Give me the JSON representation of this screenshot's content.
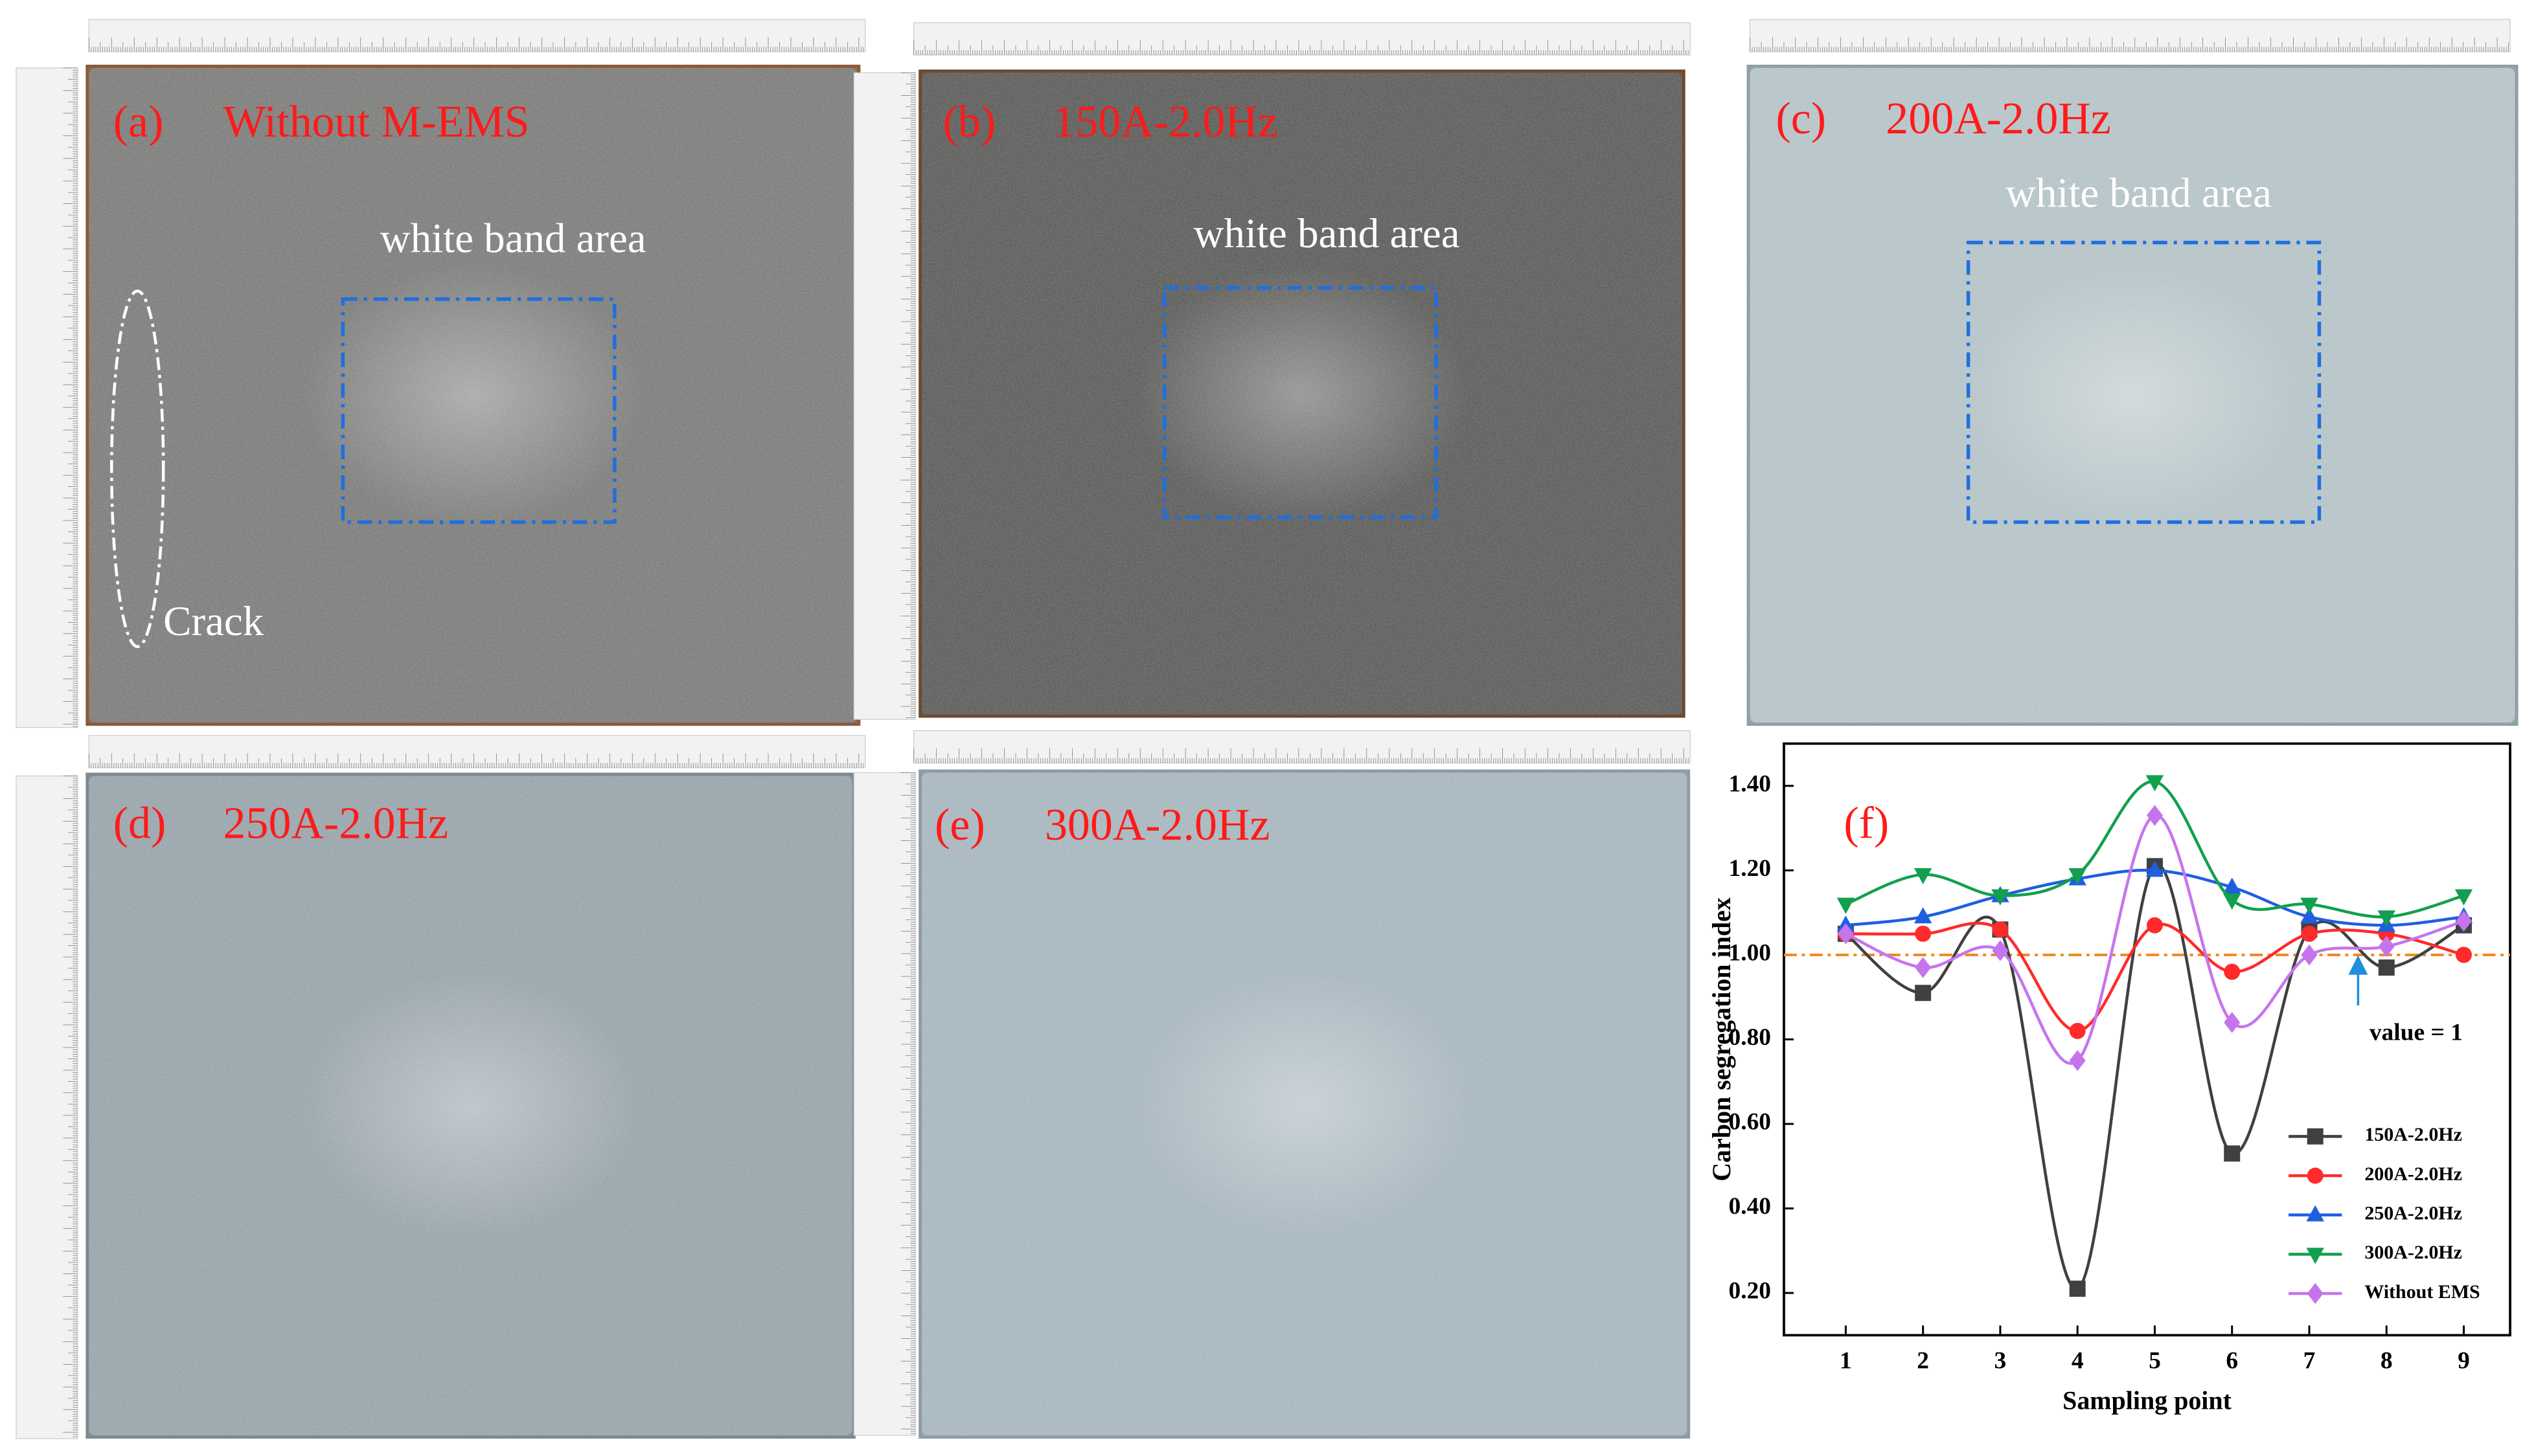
{
  "panels": [
    {
      "label": "(a)",
      "title": "Without M-EMS",
      "annotation": "white band area",
      "note": "Crack"
    },
    {
      "label": "(b)",
      "title": "150A-2.0Hz",
      "annotation": "white band area"
    },
    {
      "label": "(c)",
      "title": "200A-2.0Hz",
      "annotation": "white band area"
    },
    {
      "label": "(d)",
      "title": "250A-2.0Hz"
    },
    {
      "label": "(e)",
      "title": "300A-2.0Hz"
    }
  ],
  "chart_data": {
    "type": "line",
    "panel_label": "(f)",
    "x_label": "Sampling point",
    "y_label": "Carbon segregation index",
    "x": [
      1,
      2,
      3,
      4,
      5,
      6,
      7,
      8,
      9
    ],
    "xlim": [
      0.2,
      9.6
    ],
    "xticks": [
      1,
      2,
      3,
      4,
      5,
      6,
      7,
      8,
      9
    ],
    "ylim": [
      0.1,
      1.5
    ],
    "yticks": [
      {
        "value": 0.2,
        "label": "0.20"
      },
      {
        "value": 0.4,
        "label": "0.40"
      },
      {
        "value": 0.6,
        "label": "0.60"
      },
      {
        "value": 0.8,
        "label": "0.80"
      },
      {
        "value": 1.0,
        "label": "1.00"
      },
      {
        "value": 1.2,
        "label": "1.20"
      },
      {
        "value": 1.4,
        "label": "1.40"
      }
    ],
    "reference_line": {
      "value": 1,
      "label": "value = 1",
      "color": "#f08a24"
    },
    "series": [
      {
        "name": "150A-2.0Hz",
        "color": "#404040",
        "marker": "square",
        "values": [
          1.05,
          0.91,
          1.06,
          0.21,
          1.21,
          0.53,
          1.06,
          0.97,
          1.07
        ]
      },
      {
        "name": "200A-2.0Hz",
        "color": "#ff2a2a",
        "marker": "circle",
        "values": [
          1.05,
          1.05,
          1.06,
          0.82,
          1.07,
          0.96,
          1.05,
          1.05,
          1.0
        ]
      },
      {
        "name": "250A-2.0Hz",
        "color": "#1e5fe0",
        "marker": "triangle-up",
        "values": [
          1.07,
          1.09,
          1.14,
          1.18,
          1.2,
          1.16,
          1.09,
          1.07,
          1.09
        ]
      },
      {
        "name": "300A-2.0Hz",
        "color": "#12a04e",
        "marker": "triangle-down",
        "values": [
          1.12,
          1.19,
          1.14,
          1.19,
          1.41,
          1.13,
          1.12,
          1.09,
          1.14
        ]
      },
      {
        "name": "Without EMS",
        "color": "#c674ee",
        "marker": "diamond",
        "values": [
          1.05,
          0.97,
          1.01,
          0.75,
          1.33,
          0.84,
          1.0,
          1.02,
          1.08
        ]
      }
    ]
  }
}
